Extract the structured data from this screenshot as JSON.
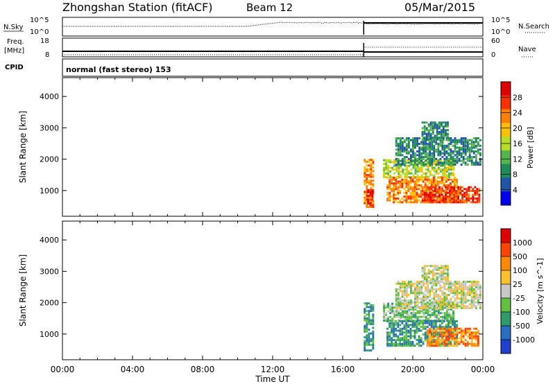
{
  "header": {
    "title": "Zhongshan Station (fitACF)",
    "beam": "Beam 12",
    "date": "05/Mar/2015"
  },
  "colors": {
    "power": [
      "#0000ee",
      "#2255aa",
      "#1f8a5a",
      "#56b44e",
      "#b5dd2a",
      "#ffc000",
      "#ff8000",
      "#ff3000",
      "#e00000"
    ],
    "velocity": [
      "#1f3fcf",
      "#2a6fbf",
      "#2f9b6a",
      "#64c040",
      "#c8c8c8",
      "#ffc030",
      "#ff8a00",
      "#ff4400",
      "#e00000"
    ]
  },
  "panels": {
    "nsky": {
      "label": "N.Sky",
      "right_label": "N.Search",
      "ticks_left": [
        "10^5",
        "10^0"
      ],
      "ticks_right": [
        "10^5",
        "10^0"
      ]
    },
    "freq": {
      "label": "Freq.",
      "unit": "[MHz]",
      "right_label": "Nave",
      "ticks_left": [
        "18",
        "8"
      ],
      "ticks_right": [
        "60",
        "0"
      ]
    },
    "cpid": {
      "label": "CPID",
      "text": "normal (fast stereo) 153"
    }
  },
  "chart_data": [
    {
      "type": "heatmap",
      "name": "power",
      "ylabel": "Slant Range [km]",
      "xlabel": "Time UT",
      "x_ticks": [
        "00:00",
        "04:00",
        "08:00",
        "12:00",
        "16:00",
        "20:00",
        "00:00"
      ],
      "x_range_hours": [
        0,
        24
      ],
      "y_ticks": [
        1000,
        2000,
        3000,
        4000
      ],
      "y_range_km": [
        180,
        4600
      ],
      "colorbar_label": "Power [dB]",
      "colorbar_ticks": [
        "28",
        "24",
        "20",
        "16",
        "12",
        "8",
        "4"
      ],
      "scatter_onset_hour": 17.2,
      "regions": [
        {
          "t0": 17.2,
          "t1": 17.8,
          "r0": 450,
          "r1": 2000,
          "level": 6
        },
        {
          "t0": 17.4,
          "t1": 17.7,
          "r0": 500,
          "r1": 1000,
          "level": 8
        },
        {
          "t0": 18.3,
          "t1": 22.3,
          "r0": 1400,
          "r1": 2000,
          "level": 4
        },
        {
          "t0": 18.5,
          "t1": 22.5,
          "r0": 600,
          "r1": 1400,
          "level": 6
        },
        {
          "t0": 20.5,
          "t1": 23.8,
          "r0": 600,
          "r1": 1100,
          "level": 7
        },
        {
          "t0": 19.0,
          "t1": 23.9,
          "r0": 1800,
          "r1": 2700,
          "level": 2
        },
        {
          "t0": 20.5,
          "t1": 22.0,
          "r0": 2600,
          "r1": 3200,
          "level": 2
        }
      ]
    },
    {
      "type": "heatmap",
      "name": "velocity",
      "ylabel": "Slant Range [km]",
      "xlabel": "Time UT",
      "x_ticks": [
        "00:00",
        "04:00",
        "08:00",
        "12:00",
        "16:00",
        "20:00",
        "00:00"
      ],
      "x_range_hours": [
        0,
        24
      ],
      "y_ticks": [
        1000,
        2000,
        3000,
        4000
      ],
      "y_range_km": [
        180,
        4600
      ],
      "colorbar_label": "Velocity [m s^-1]",
      "colorbar_ticks": [
        "1000",
        "500",
        "100",
        "25",
        "-25",
        "-100",
        "-500",
        "-1000"
      ],
      "scatter_onset_hour": 17.2,
      "regions": [
        {
          "t0": 17.2,
          "t1": 17.8,
          "r0": 450,
          "r1": 2000,
          "level": 2
        },
        {
          "t0": 18.3,
          "t1": 22.3,
          "r0": 1400,
          "r1": 2000,
          "level": 3
        },
        {
          "t0": 18.5,
          "t1": 22.5,
          "r0": 600,
          "r1": 1400,
          "level": 2
        },
        {
          "t0": 20.8,
          "t1": 23.8,
          "r0": 600,
          "r1": 1200,
          "level": 6
        },
        {
          "t0": 19.0,
          "t1": 23.9,
          "r0": 1800,
          "r1": 2700,
          "level": 4
        },
        {
          "t0": 20.5,
          "t1": 22.0,
          "r0": 2600,
          "r1": 3200,
          "level": 4
        }
      ]
    }
  ]
}
